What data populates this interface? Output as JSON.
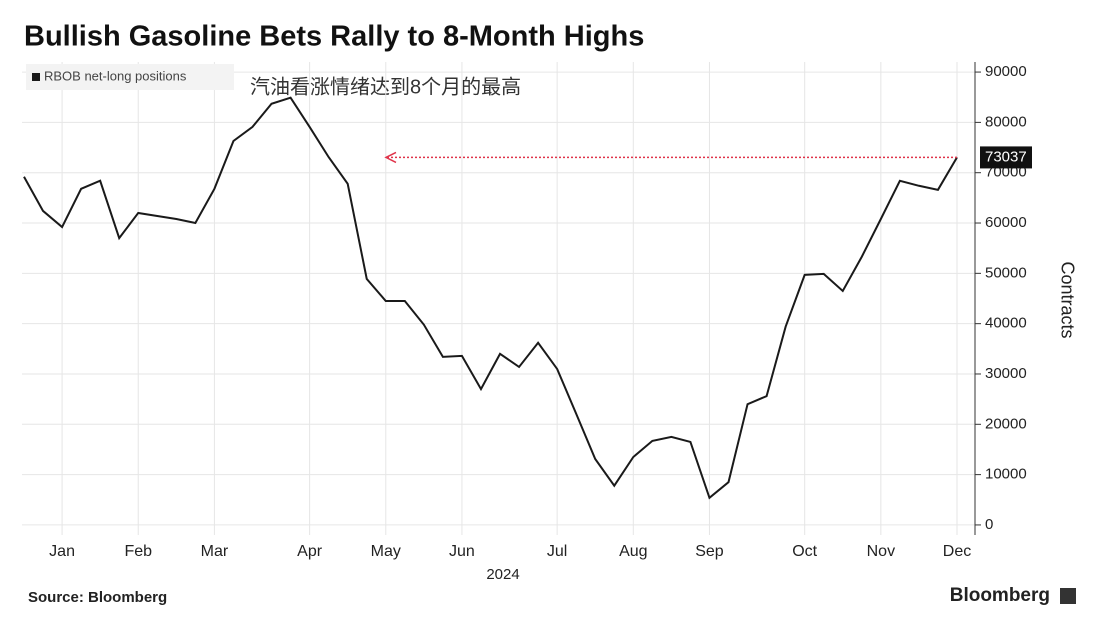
{
  "chart_data": {
    "type": "line",
    "title": "Bullish Gasoline Bets Rally to 8-Month Highs",
    "annotation": "汽油看涨情绪达到8个月的最高",
    "x_label": "2024",
    "y_label": "Contracts",
    "source": "Source: Bloomberg",
    "brand": "Bloomberg",
    "categories": [
      null,
      null,
      "Jan",
      null,
      null,
      null,
      "Feb",
      null,
      null,
      null,
      "Mar",
      null,
      null,
      null,
      null,
      "Apr",
      null,
      null,
      null,
      "May",
      null,
      null,
      null,
      "Jun",
      null,
      null,
      null,
      null,
      "Jul",
      null,
      null,
      null,
      "Aug",
      null,
      null,
      null,
      "Sep",
      null,
      null,
      null,
      null,
      "Oct",
      null,
      null,
      null,
      "Nov",
      null,
      null,
      null,
      "Dec"
    ],
    "series": [
      {
        "name": "RBOB net-long positions",
        "color": "#1a1a1a",
        "values": [
          69200,
          62400,
          59200,
          66800,
          68400,
          57000,
          62000,
          61400,
          60800,
          60000,
          66800,
          76300,
          79100,
          83700,
          84900,
          79100,
          73100,
          67800,
          48900,
          44500,
          44500,
          39800,
          33400,
          33600,
          27000,
          34000,
          31400,
          36200,
          31000,
          22100,
          13100,
          7800,
          13500,
          16700,
          17500,
          16500,
          5400,
          8500,
          24000,
          25600,
          39400,
          49700,
          49900,
          46500,
          53300,
          60800,
          68400,
          67400,
          66600,
          73037
        ]
      }
    ],
    "ylim": [
      -2000,
      92000
    ],
    "yticks": [
      0,
      10000,
      20000,
      30000,
      40000,
      50000,
      60000,
      70000,
      80000,
      90000
    ],
    "grid": true,
    "legend": "top-left",
    "annotation_color": "#e0334a"
  }
}
